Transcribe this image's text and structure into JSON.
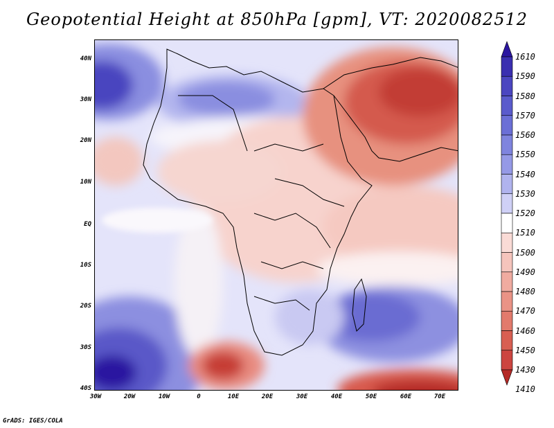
{
  "title": "Geopotential Height at 850hPa [gpm], VT: 2020082512",
  "footer": "GrADS: IGES/COLA",
  "axes": {
    "lat_labels": [
      "40N",
      "30N",
      "20N",
      "10N",
      "EQ",
      "10S",
      "20S",
      "30S",
      "40S"
    ],
    "lon_labels": [
      "30W",
      "20W",
      "10W",
      "0",
      "10E",
      "20E",
      "30E",
      "40E",
      "50E",
      "60E",
      "70E"
    ]
  },
  "colorbar": {
    "levels": [
      "1610",
      "1590",
      "1580",
      "1570",
      "1560",
      "1550",
      "1540",
      "1530",
      "1520",
      "1510",
      "1500",
      "1490",
      "1480",
      "1470",
      "1460",
      "1450",
      "1430",
      "1410"
    ],
    "colors": [
      "#2b16a0",
      "#3a2fb0",
      "#4b46c0",
      "#5a5bcc",
      "#6b6fd6",
      "#7f84de",
      "#9599e6",
      "#b0b3ee",
      "#cfd0f6",
      "#ffffff",
      "#fadbd6",
      "#f5c4bc",
      "#f0aba0",
      "#ea9386",
      "#e27a6c",
      "#d85f52",
      "#cc4540",
      "#b52a27"
    ]
  },
  "colors": {
    "background": "#ffffff",
    "border": "#000000"
  }
}
